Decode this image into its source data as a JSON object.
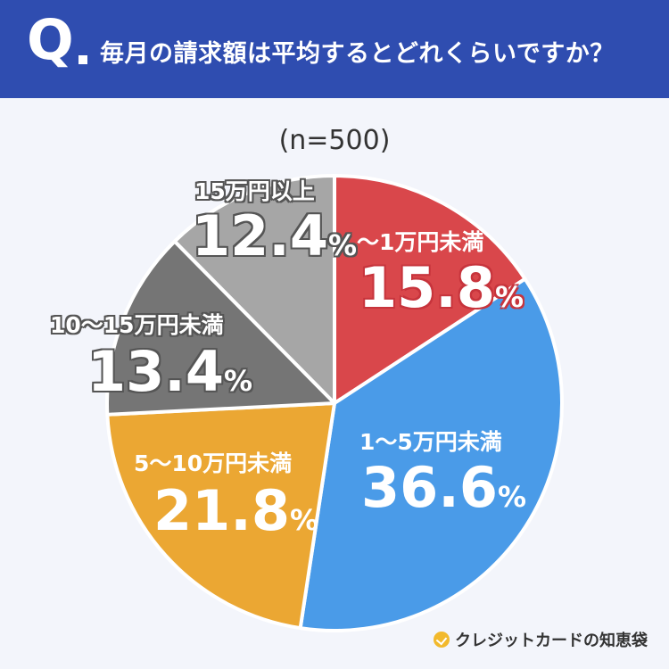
{
  "header": {
    "q_mark": "Q",
    "question": "毎月の請求額は平均するとどれくらいですか？"
  },
  "chart_data": {
    "type": "pie",
    "sample_label": "(n=500)",
    "unit": "%",
    "slices": [
      {
        "label": "〜1万円未満",
        "value": 15.8,
        "value_text": "15.8",
        "color": "#d9474b"
      },
      {
        "label": "1〜5万円未満",
        "value": 36.6,
        "value_text": "36.6",
        "color": "#4a9be8"
      },
      {
        "label": "5〜10万円未満",
        "value": 21.8,
        "value_text": "21.8",
        "color": "#eba733"
      },
      {
        "label": "10〜15万円未満",
        "value": 13.4,
        "value_text": "13.4",
        "color": "#757575"
      },
      {
        "label": "15万円以上",
        "value": 12.4,
        "value_text": "12.4",
        "color": "#a6a6a6"
      }
    ]
  },
  "brand": {
    "name": "クレジットカードの知恵袋"
  }
}
